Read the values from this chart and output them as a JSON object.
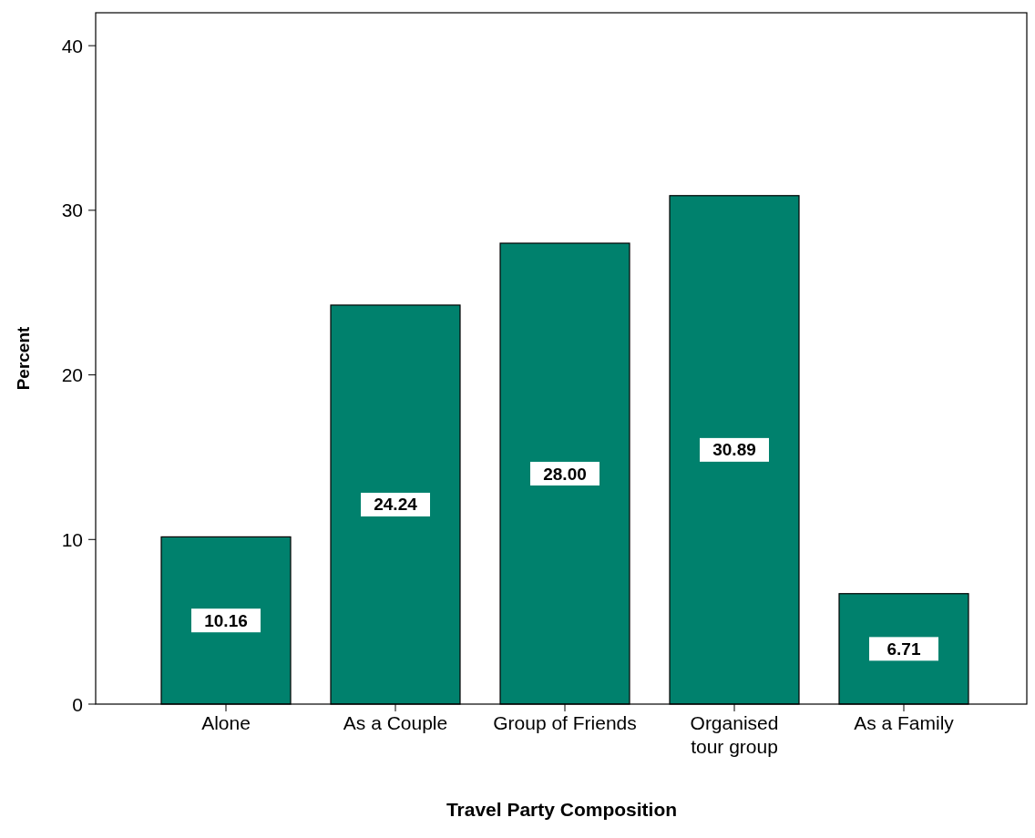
{
  "chart_data": {
    "type": "bar",
    "xlabel": "Travel Party Composition",
    "ylabel": "Percent",
    "categories": [
      "Alone",
      "As a Couple",
      "Group of Friends",
      "Organised tour group",
      "As a Family"
    ],
    "values": [
      10.16,
      24.24,
      28.0,
      30.89,
      6.71
    ],
    "value_labels": [
      "10.16",
      "24.24",
      "28.00",
      "30.89",
      "6.71"
    ],
    "color": "#00816d",
    "ylim": [
      0,
      42
    ],
    "yticks": [
      0,
      10,
      20,
      30,
      40
    ],
    "grid": false
  }
}
